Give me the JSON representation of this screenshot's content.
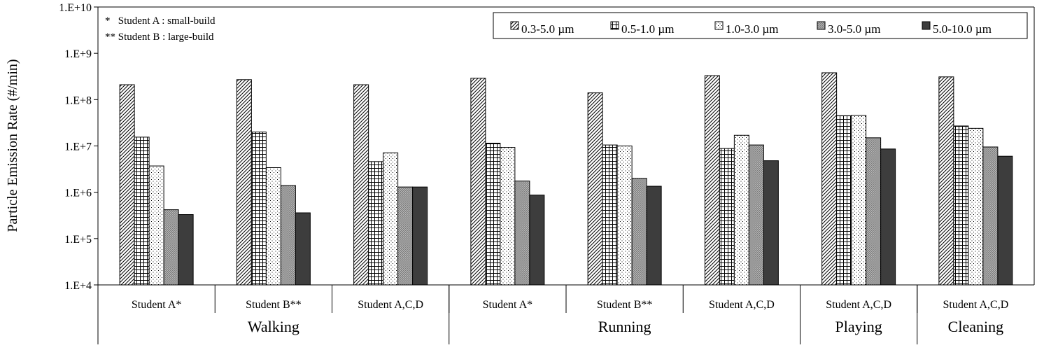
{
  "chart_data": {
    "type": "bar",
    "y_scale": "log",
    "ylabel": "Particle Emission Rate (#/min)",
    "ylim": [
      10000,
      10000000000
    ],
    "y_ticks": [
      "1.E+4",
      "1.E+5",
      "1.E+6",
      "1.E+7",
      "1.E+8",
      "1.E+9",
      "1.E+10"
    ],
    "grid": false,
    "legend_position": "top-right",
    "notes": [
      "*   Student A : small-build",
      "** Student B : large-build"
    ],
    "activities": [
      {
        "label": "Walking",
        "groups": [
          "Student A*",
          "Student B**",
          "Student A,C,D"
        ]
      },
      {
        "label": "Running",
        "groups": [
          "Student A*",
          "Student B**",
          "Student A,C,D"
        ]
      },
      {
        "label": "Playing",
        "groups": [
          "Student A,C,D"
        ]
      },
      {
        "label": "Cleaning",
        "groups": [
          "Student A,C,D"
        ]
      }
    ],
    "categories": [
      "Student A*",
      "Student B**",
      "Student A,C,D",
      "Student A*",
      "Student B**",
      "Student A,C,D",
      "Student A,C,D",
      "Student A,C,D"
    ],
    "series": [
      {
        "name": "0.3-5.0 µm",
        "pattern": "diagonal-hatch",
        "values": [
          210000000,
          270000000,
          210000000,
          290000000,
          140000000,
          330000000,
          380000000,
          310000000
        ]
      },
      {
        "name": "0.5-1.0 µm",
        "pattern": "grid",
        "values": [
          15500000,
          20000000,
          4600000,
          11500000,
          10500000,
          8800000,
          45000000,
          27000000
        ]
      },
      {
        "name": "1.0-3.0 µm",
        "pattern": "dots",
        "values": [
          3700000,
          3400000,
          7100000,
          9300000,
          10000000,
          17000000,
          46000000,
          24000000
        ]
      },
      {
        "name": "3.0-5.0 µm",
        "pattern": "crosshatch-gray",
        "values": [
          420000,
          1400000,
          1300000,
          1750000,
          2000000,
          10500000,
          15000000,
          9500000
        ]
      },
      {
        "name": "5.0-10.0 µm",
        "pattern": "solid-dark",
        "values": [
          330000,
          360000,
          1300000,
          870000,
          1350000,
          4800000,
          8600000,
          6000000
        ]
      }
    ]
  }
}
